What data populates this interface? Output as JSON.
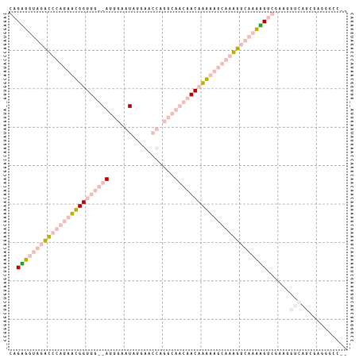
{
  "sequence": "CAGAGGUAGACCCAUAACGGUUG__AUUGAAUAUGAACCAGGCAACAACAAAAAGCAAAGUCAAAAGUCGAAUGUCAUCGAGGGCC__",
  "colors": {
    "grid": "#9a9a9a",
    "frame": "#000000",
    "diagonal": "#555555",
    "pair_strong": "#c40000",
    "pair_green": "#1fa51f",
    "pair_olive": "#c2b000",
    "pair_weak": "#f2bcbc",
    "pair_faint": "#f4e6e6"
  },
  "chart_data": {
    "type": "heatmap",
    "description_key": "rna-dot-plot",
    "n": 88,
    "grid": true,
    "upper_triangle": [
      {
        "i": 1,
        "j": 69,
        "level": "weak"
      },
      {
        "i": 2,
        "j": 68,
        "level": "weak"
      },
      {
        "i": 3,
        "j": 67,
        "level": "strong"
      },
      {
        "i": 4,
        "j": 66,
        "level": "green"
      },
      {
        "i": 5,
        "j": 65,
        "level": "olive"
      },
      {
        "i": 6,
        "j": 64,
        "level": "weak"
      },
      {
        "i": 7,
        "j": 63,
        "level": "weak"
      },
      {
        "i": 8,
        "j": 62,
        "level": "weak"
      },
      {
        "i": 9,
        "j": 61,
        "level": "weak"
      },
      {
        "i": 10,
        "j": 60,
        "level": "olive"
      },
      {
        "i": 11,
        "j": 59,
        "level": "olive"
      },
      {
        "i": 12,
        "j": 58,
        "level": "weak"
      },
      {
        "i": 13,
        "j": 57,
        "level": "weak"
      },
      {
        "i": 14,
        "j": 56,
        "level": "weak"
      },
      {
        "i": 15,
        "j": 55,
        "level": "weak"
      },
      {
        "i": 16,
        "j": 54,
        "level": "weak"
      },
      {
        "i": 17,
        "j": 53,
        "level": "weak"
      },
      {
        "i": 18,
        "j": 52,
        "level": "olive"
      },
      {
        "i": 19,
        "j": 51,
        "level": "olive"
      },
      {
        "i": 20,
        "j": 50,
        "level": "weak"
      },
      {
        "i": 21,
        "j": 49,
        "level": "strong"
      },
      {
        "i": 22,
        "j": 48,
        "level": "strong"
      },
      {
        "i": 23,
        "j": 47,
        "level": "weak"
      },
      {
        "i": 24,
        "j": 46,
        "level": "weak"
      },
      {
        "i": 25,
        "j": 45,
        "level": "weak"
      },
      {
        "i": 26,
        "j": 44,
        "level": "weak"
      },
      {
        "i": 27,
        "j": 43,
        "level": "weak"
      },
      {
        "i": 28,
        "j": 42,
        "level": "weak"
      },
      {
        "i": 29,
        "j": 41,
        "level": "weak"
      },
      {
        "i": 31,
        "j": 39,
        "level": "weak"
      },
      {
        "i": 32,
        "j": 38,
        "level": "weak"
      },
      {
        "i": 25,
        "j": 32,
        "level": "strong"
      },
      {
        "i": 36,
        "j": 39,
        "level": "faint"
      }
    ],
    "lower_triangle": [
      {
        "i": 3,
        "j": 67,
        "level": "strong"
      },
      {
        "i": 4,
        "j": 66,
        "level": "green"
      },
      {
        "i": 5,
        "j": 65,
        "level": "olive"
      },
      {
        "i": 6,
        "j": 64,
        "level": "weak"
      },
      {
        "i": 7,
        "j": 63,
        "level": "weak"
      },
      {
        "i": 8,
        "j": 62,
        "level": "weak"
      },
      {
        "i": 9,
        "j": 61,
        "level": "weak"
      },
      {
        "i": 10,
        "j": 60,
        "level": "olive"
      },
      {
        "i": 11,
        "j": 59,
        "level": "olive"
      },
      {
        "i": 12,
        "j": 58,
        "level": "weak"
      },
      {
        "i": 13,
        "j": 57,
        "level": "weak"
      },
      {
        "i": 14,
        "j": 56,
        "level": "weak"
      },
      {
        "i": 15,
        "j": 55,
        "level": "weak"
      },
      {
        "i": 16,
        "j": 54,
        "level": "weak"
      },
      {
        "i": 17,
        "j": 53,
        "level": "olive"
      },
      {
        "i": 18,
        "j": 52,
        "level": "olive"
      },
      {
        "i": 19,
        "j": 51,
        "level": "strong"
      },
      {
        "i": 20,
        "j": 50,
        "level": "strong"
      },
      {
        "i": 21,
        "j": 49,
        "level": "weak"
      },
      {
        "i": 22,
        "j": 48,
        "level": "weak"
      },
      {
        "i": 23,
        "j": 47,
        "level": "weak"
      },
      {
        "i": 24,
        "j": 46,
        "level": "weak"
      },
      {
        "i": 25,
        "j": 45,
        "level": "weak"
      },
      {
        "i": 26,
        "j": 44,
        "level": "strong"
      },
      {
        "i": 74,
        "j": 78,
        "level": "faint"
      },
      {
        "i": 75,
        "j": 77,
        "level": "faint"
      },
      {
        "i": 76,
        "j": 76,
        "level": "faint"
      }
    ]
  }
}
